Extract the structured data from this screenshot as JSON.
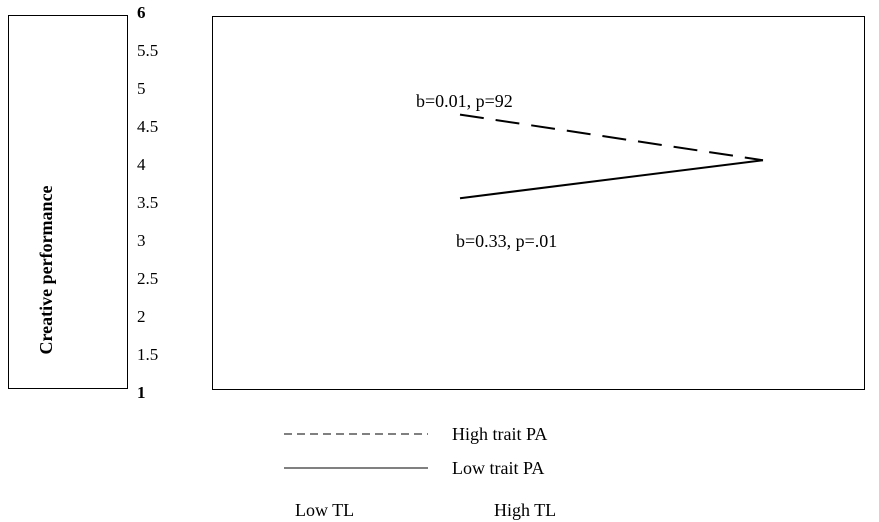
{
  "chart_data": {
    "type": "line",
    "title": "",
    "xlabel": "",
    "ylabel": "Creative performance",
    "ylim": [
      1,
      6
    ],
    "yticks": [
      "1",
      "1.5",
      "2",
      "2.5",
      "3",
      "3.5",
      "4",
      "4.5",
      "5",
      "5.5",
      "6"
    ],
    "categories": [
      "Low TL",
      "High TL"
    ],
    "series": [
      {
        "name": "High trait PA",
        "style": "dashed",
        "values": [
          4.65,
          4.05
        ]
      },
      {
        "name": "Low trait PA",
        "style": "solid",
        "values": [
          3.55,
          4.05
        ]
      }
    ],
    "annotations": [
      "b=0.01, p=92",
      "b=0.33, p=.01"
    ]
  }
}
